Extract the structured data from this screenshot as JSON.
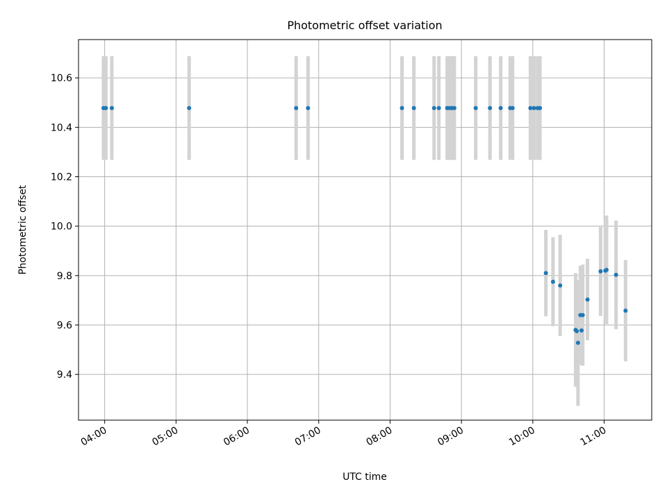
{
  "chart_data": {
    "type": "scatter",
    "title": "Photometric offset variation",
    "xlabel": "UTC time",
    "ylabel": "Photometric offset",
    "xlim": [
      "03:38",
      "11:40"
    ],
    "ylim": [
      9.215,
      10.755
    ],
    "grid": true,
    "x_ticks": [
      "04:00",
      "05:00",
      "06:00",
      "07:00",
      "08:00",
      "09:00",
      "10:00",
      "11:00"
    ],
    "y_ticks": [
      "9.4",
      "9.6",
      "9.8",
      "10.0",
      "10.2",
      "10.4",
      "10.6"
    ],
    "colors": {
      "points": "#1f77b4",
      "error_bars": "#d3d3d3"
    },
    "series": [
      {
        "x": [
          "03:59",
          "04:01",
          "04:06",
          "05:11",
          "06:41",
          "06:51",
          "08:10",
          "08:20",
          "08:37",
          "08:41",
          "08:48",
          "08:50",
          "08:52",
          "08:54",
          "09:12",
          "09:24",
          "09:33",
          "09:41",
          "09:43",
          "09:58",
          "10:01",
          "10:04",
          "10:06",
          "10:11",
          "10:17",
          "10:23",
          "10:36",
          "10:37",
          "10:38",
          "10:40",
          "10:41",
          "10:42",
          "10:46",
          "10:57",
          "11:01",
          "11:02",
          "11:10",
          "11:18"
        ],
        "y": [
          10.478,
          10.478,
          10.478,
          10.478,
          10.478,
          10.478,
          10.478,
          10.478,
          10.478,
          10.478,
          10.478,
          10.478,
          10.478,
          10.478,
          10.478,
          10.478,
          10.478,
          10.478,
          10.478,
          10.478,
          10.478,
          10.478,
          10.478,
          9.81,
          9.775,
          9.76,
          9.58,
          9.575,
          9.528,
          9.64,
          9.578,
          9.64,
          9.703,
          9.817,
          9.82,
          9.823,
          9.803,
          9.658
        ],
        "yerr": [
          0.21,
          0.21,
          0.21,
          0.21,
          0.21,
          0.21,
          0.21,
          0.21,
          0.21,
          0.21,
          0.21,
          0.21,
          0.21,
          0.21,
          0.21,
          0.21,
          0.21,
          0.21,
          0.21,
          0.21,
          0.21,
          0.21,
          0.21,
          0.175,
          0.18,
          0.205,
          0.23,
          0.2,
          0.255,
          0.2,
          0.14,
          0.205,
          0.165,
          0.18,
          0.2,
          0.22,
          0.22,
          0.205
        ]
      }
    ]
  }
}
